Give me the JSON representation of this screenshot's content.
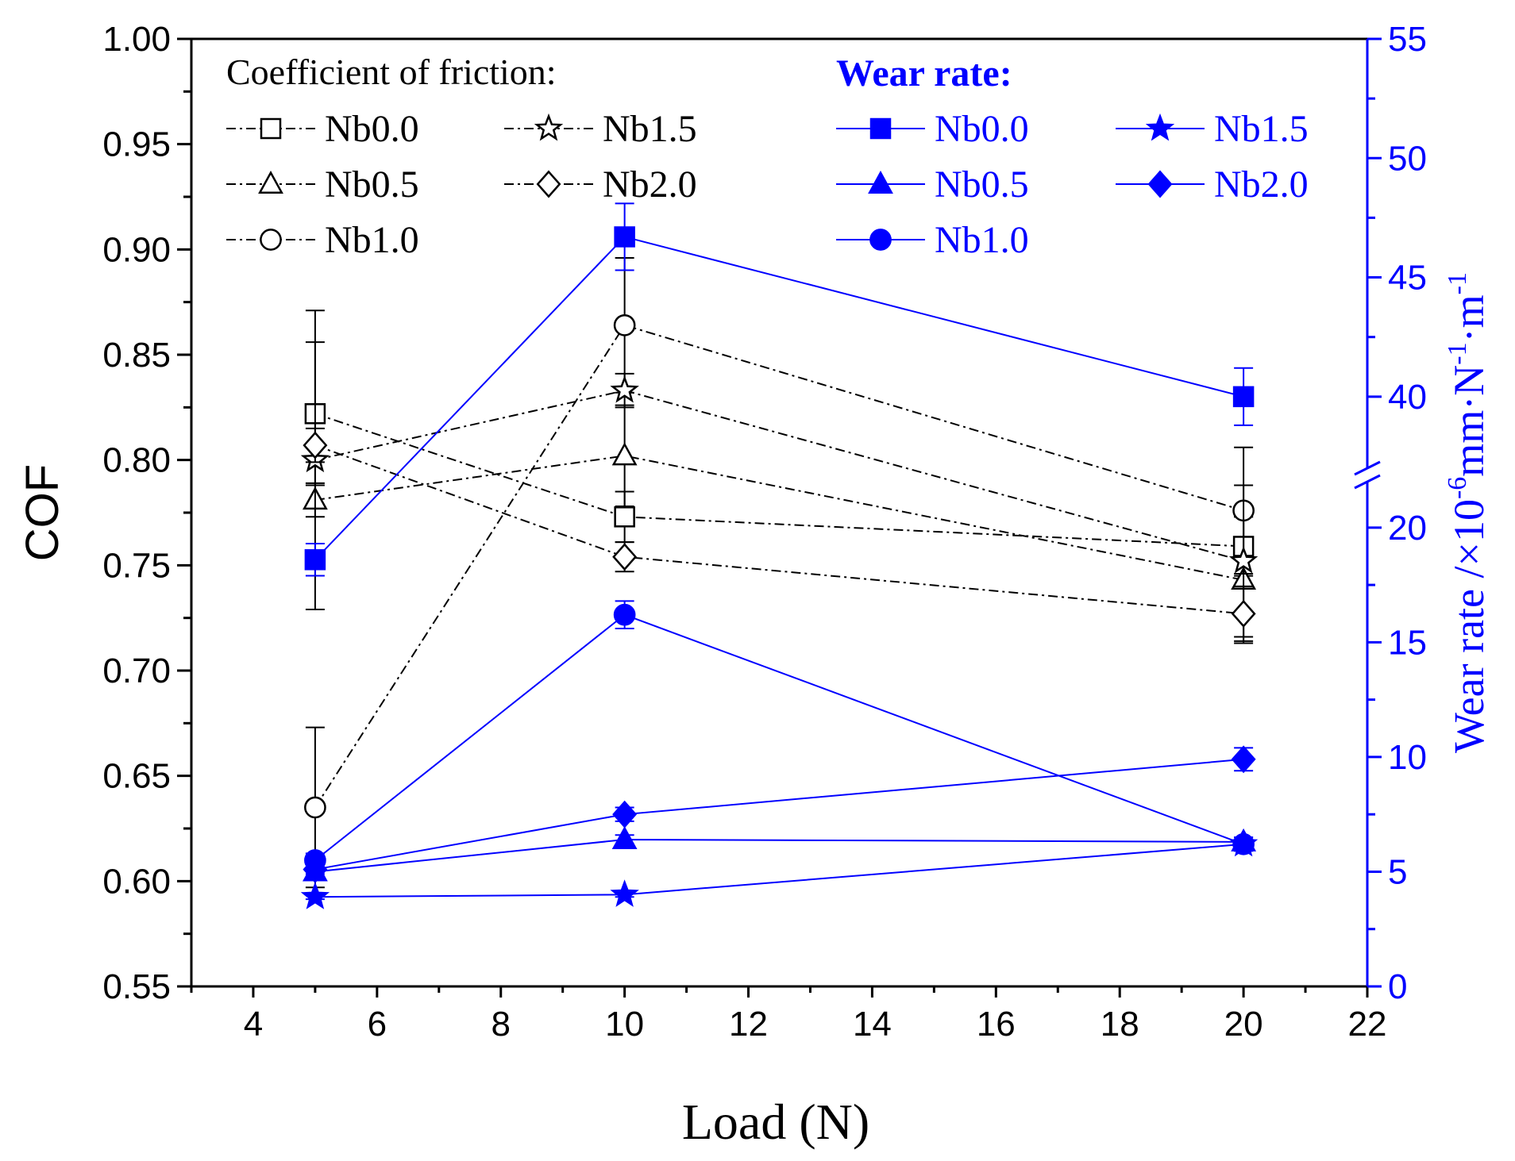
{
  "chart_data": {
    "type": "line",
    "x_axis": {
      "label": "Load (N)",
      "range": [
        3,
        22
      ],
      "ticks": [
        4,
        6,
        8,
        10,
        12,
        14,
        16,
        18,
        20,
        22
      ],
      "tick_labels": [
        "4",
        "6",
        "8",
        "10",
        "12",
        "14",
        "16",
        "18",
        "20",
        "22"
      ]
    },
    "left_axis": {
      "label": "COF",
      "range": [
        0.55,
        1.0
      ],
      "ticks": [
        0.55,
        0.6,
        0.65,
        0.7,
        0.75,
        0.8,
        0.85,
        0.9,
        0.95,
        1.0
      ],
      "tick_labels": [
        "0.55",
        "0.60",
        "0.65",
        "0.70",
        "0.75",
        "0.80",
        "0.85",
        "0.90",
        "0.95",
        "1.00"
      ]
    },
    "right_axis": {
      "label": "Wear rate /×10⁻⁶mm·N⁻¹·m⁻¹",
      "label_parts": {
        "main": "Wear rate /×10",
        "exp1": "-6",
        "mid": "mm·N",
        "exp2": "-1",
        "mid2": "·m",
        "exp3": "-1"
      },
      "color": "#0000ff",
      "broken": true,
      "lower_segment": {
        "range": [
          0,
          22
        ],
        "ticks": [
          0,
          5,
          10,
          15,
          20
        ],
        "tick_labels": [
          "0",
          "5",
          "10",
          "15",
          "20"
        ]
      },
      "upper_segment": {
        "range": [
          37,
          55
        ],
        "ticks": [
          40,
          45,
          50,
          55
        ],
        "tick_labels": [
          "40",
          "45",
          "50",
          "55"
        ]
      }
    },
    "legend_cof": {
      "title": "Coefficient of friction:",
      "placement": "top-left",
      "labels": [
        "Nb0.0",
        "Nb1.5",
        "Nb0.5",
        "Nb2.0",
        "Nb1.0"
      ]
    },
    "legend_wear": {
      "title": "Wear rate:",
      "placement": "top-right",
      "labels": [
        "Nb0.0",
        "Nb1.5",
        "Nb0.5",
        "Nb2.0",
        "Nb1.0"
      ]
    },
    "x": [
      5,
      10,
      20
    ],
    "cof_series": [
      {
        "name": "Nb0.0",
        "marker": "square",
        "values": [
          0.822,
          0.773,
          0.759
        ],
        "errors": [
          0.034,
          0.012,
          0.014
        ]
      },
      {
        "name": "Nb0.5",
        "marker": "triangle",
        "values": [
          0.781,
          0.802,
          0.743
        ],
        "errors": [
          0.008,
          0.024,
          0.03
        ]
      },
      {
        "name": "Nb1.0",
        "marker": "circle",
        "values": [
          0.635,
          0.864,
          0.776
        ],
        "errors": [
          0.038,
          0.032,
          0.03
        ]
      },
      {
        "name": "Nb1.5",
        "marker": "star",
        "values": [
          0.8,
          0.833,
          0.752
        ],
        "errors": [
          0.071,
          0.008,
          0.036
        ]
      },
      {
        "name": "Nb2.0",
        "marker": "diamond",
        "values": [
          0.807,
          0.754,
          0.727
        ],
        "errors": [
          0.008,
          0.007,
          0.013
        ]
      }
    ],
    "wear_series": [
      {
        "name": "Nb0.0",
        "marker": "square",
        "values": [
          18.6,
          46.7,
          40.0
        ],
        "errors": [
          0.7,
          1.4,
          1.2
        ]
      },
      {
        "name": "Nb0.5",
        "marker": "triangle",
        "values": [
          5.0,
          6.4,
          6.3
        ],
        "errors": [
          0.2,
          0.2,
          0.2
        ]
      },
      {
        "name": "Nb1.0",
        "marker": "circle",
        "values": [
          5.5,
          16.2,
          6.2
        ],
        "errors": [
          0.3,
          0.6,
          0.3
        ]
      },
      {
        "name": "Nb1.5",
        "marker": "star",
        "values": [
          3.9,
          4.0,
          6.2
        ],
        "errors": [
          0.1,
          0.1,
          0.2
        ]
      },
      {
        "name": "Nb2.0",
        "marker": "diamond",
        "values": [
          5.1,
          7.5,
          9.9
        ],
        "errors": [
          0.2,
          0.3,
          0.5
        ]
      }
    ]
  }
}
